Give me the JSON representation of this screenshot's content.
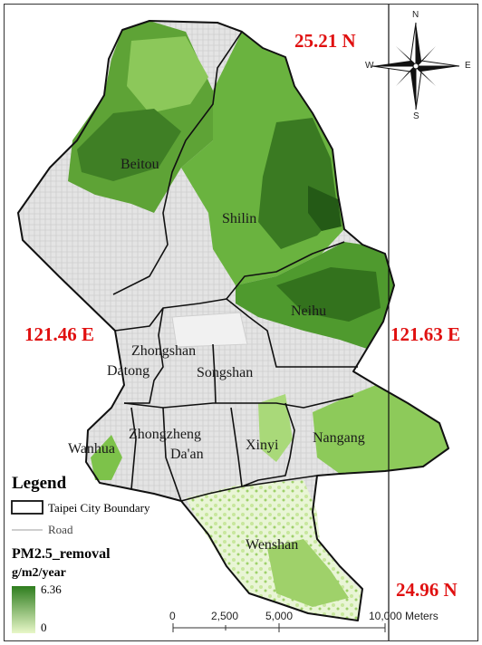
{
  "coordinates": {
    "north": "25.21 N",
    "south": "24.96 N",
    "west": "121.46 E",
    "east": "121.63 E"
  },
  "districts": {
    "beitou": "Beitou",
    "shilin": "Shilin",
    "neihu": "Neihu",
    "zhongshan": "Zhongshan",
    "datong": "Datong",
    "songshan": "Songshan",
    "zhongzheng": "Zhongzheng",
    "daan": "Da'an",
    "wanhua": "Wanhua",
    "xinyi": "Xinyi",
    "nangang": "Nangang",
    "wenshan": "Wenshan"
  },
  "compass": {
    "n": "N",
    "s": "S",
    "e": "E",
    "w": "W"
  },
  "legend": {
    "title": "Legend",
    "boundary_label": "Taipei City Boundary",
    "road_label": "Road",
    "raster_title": "PM2.5_removal",
    "unit": "g/m2/year",
    "max_value": "6.36",
    "min_value": "0",
    "ramp_high_color": "#2e7d1e",
    "ramp_low_color": "#e8f7c8"
  },
  "scale_bar": {
    "ticks": [
      "0",
      "2,500",
      "5,000",
      "10,000 Meters"
    ]
  },
  "colors": {
    "dark_green": "#2f6f1f",
    "mid_green": "#6fb83a",
    "light_green": "#b9e08a",
    "pale_green": "#e3f3c9",
    "urban_gray": "#d9d9d9",
    "label_red": "#e01010"
  }
}
